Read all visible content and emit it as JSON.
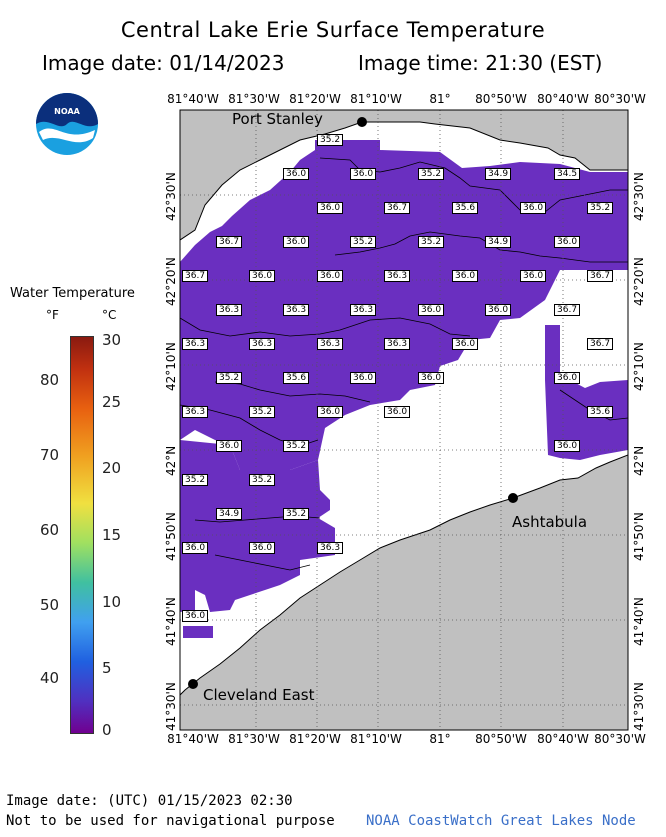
{
  "title": "Central Lake Erie Surface Temperature",
  "image_date_label": "Image date: 01/14/2023",
  "image_time_label": "Image time: 21:30 (EST)",
  "legend": {
    "title": "Water Temperature",
    "unit_f": "°F",
    "unit_c": "°C",
    "f_ticks": [
      "80",
      "70",
      "60",
      "50",
      "40"
    ],
    "c_ticks": [
      "30",
      "25",
      "20",
      "15",
      "10",
      "5",
      "0"
    ]
  },
  "axes": {
    "lon_labels": [
      "81°40'W",
      "81°30'W",
      "81°20'W",
      "81°10'W",
      "81°",
      "80°50'W",
      "80°40'W",
      "80°30'W"
    ],
    "lat_labels": [
      "42°30'N",
      "42°20'N",
      "42°10'N",
      "42°N",
      "41°50'N",
      "41°40'N",
      "41°30'N"
    ]
  },
  "cities": [
    {
      "name": "Port Stanley"
    },
    {
      "name": "Ashtabula"
    },
    {
      "name": "Cleveland East"
    }
  ],
  "temperature_labels": [
    "35.2",
    "36.0",
    "36.0",
    "35.2",
    "34.9",
    "34.5",
    "36.0",
    "36.7",
    "35.6",
    "36.0",
    "35.2",
    "36.7",
    "36.0",
    "35.2",
    "35.2",
    "34.9",
    "36.0",
    "36.7",
    "36.0",
    "36.0",
    "36.3",
    "36.0",
    "36.0",
    "36.7",
    "36.3",
    "36.3",
    "36.3",
    "36.0",
    "36.0",
    "36.7",
    "36.3",
    "36.3",
    "36.3",
    "36.3",
    "36.0",
    "36.7",
    "35.2",
    "35.6",
    "36.0",
    "36.0",
    "36.0",
    "36.3",
    "35.2",
    "36.0",
    "36.0",
    "35.6",
    "36.0",
    "35.2",
    "36.0",
    "35.2",
    "35.2",
    "34.9",
    "35.2",
    "36.0",
    "36.0",
    "36.3",
    "36.0"
  ],
  "footer": {
    "utc_date": "Image date: (UTC) 01/15/2023  02:30",
    "disclaimer": "Not to be used for navigational purpose",
    "credit": "NOAA CoastWatch Great Lakes Node"
  },
  "logo_text": "NOAA",
  "colors": {
    "land": "#c0c0c0",
    "water_temp": "#6a2fc0",
    "cloud_ice": "#ffffff",
    "credit_text": "#3a6fc8"
  }
}
